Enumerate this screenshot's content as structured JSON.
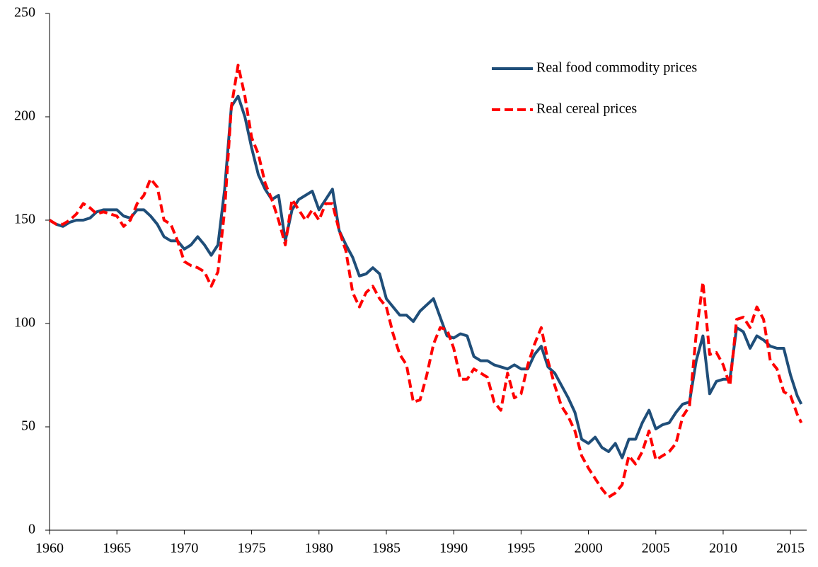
{
  "chart_data": {
    "type": "line",
    "x": [
      1960,
      1960.5,
      1961,
      1961.5,
      1962,
      1962.5,
      1963,
      1963.5,
      1964,
      1964.5,
      1965,
      1965.5,
      1966,
      1966.5,
      1967,
      1967.5,
      1968,
      1968.5,
      1969,
      1969.5,
      1970,
      1970.5,
      1971,
      1971.5,
      1972,
      1972.5,
      1973,
      1973.5,
      1974,
      1974.5,
      1975,
      1975.5,
      1976,
      1976.5,
      1977,
      1977.5,
      1978,
      1978.5,
      1979,
      1979.5,
      1980,
      1980.5,
      1981,
      1981.5,
      1982,
      1982.5,
      1983,
      1983.5,
      1984,
      1984.5,
      1985,
      1985.5,
      1986,
      1986.5,
      1987,
      1987.5,
      1988,
      1988.5,
      1989,
      1989.5,
      1990,
      1990.5,
      1991,
      1991.5,
      1992,
      1992.5,
      1993,
      1993.5,
      1994,
      1994.5,
      1995,
      1995.5,
      1996,
      1996.5,
      1997,
      1997.5,
      1998,
      1998.5,
      1999,
      1999.5,
      2000,
      2000.5,
      2001,
      2001.5,
      2002,
      2002.5,
      2003,
      2003.5,
      2004,
      2004.5,
      2005,
      2005.5,
      2006,
      2006.5,
      2007,
      2007.5,
      2008,
      2008.5,
      2009,
      2009.5,
      2010,
      2010.5,
      2011,
      2011.5,
      2012,
      2012.5,
      2013,
      2013.5,
      2014,
      2014.5,
      2015,
      2015.5,
      2015.8
    ],
    "series": [
      {
        "name": "Real food commodity prices",
        "color": "#1f4e79",
        "dash": "solid",
        "values": [
          150,
          148,
          147,
          149,
          150,
          150,
          151,
          154,
          155,
          155,
          155,
          152,
          151,
          155,
          155,
          152,
          148,
          142,
          140,
          140,
          136,
          138,
          142,
          138,
          133,
          138,
          165,
          205,
          210,
          200,
          185,
          172,
          165,
          160,
          162,
          140,
          155,
          160,
          162,
          164,
          155,
          160,
          165,
          145,
          138,
          132,
          123,
          124,
          127,
          124,
          112,
          108,
          104,
          104,
          101,
          106,
          109,
          112,
          103,
          94,
          93,
          95,
          94,
          84,
          82,
          82,
          80,
          79,
          78,
          80,
          78,
          78,
          85,
          89,
          79,
          76,
          70,
          64,
          57,
          44,
          42,
          45,
          40,
          38,
          42,
          35,
          44,
          44,
          52,
          58,
          49,
          51,
          52,
          57,
          61,
          62,
          82,
          94,
          66,
          72,
          73,
          73,
          98,
          96,
          88,
          94,
          92,
          89,
          88,
          88,
          75,
          65,
          61
        ]
      },
      {
        "name": "Real cereal prices",
        "color": "#ff0000",
        "dash": "dashed",
        "values": [
          150,
          148,
          148,
          150,
          153,
          158,
          156,
          153,
          154,
          153,
          152,
          147,
          150,
          158,
          162,
          170,
          166,
          150,
          148,
          140,
          130,
          128,
          127,
          125,
          118,
          125,
          155,
          205,
          225,
          210,
          190,
          182,
          168,
          160,
          150,
          138,
          160,
          155,
          150,
          155,
          150,
          158,
          158,
          145,
          135,
          115,
          108,
          115,
          118,
          112,
          108,
          95,
          85,
          80,
          62,
          63,
          75,
          90,
          98,
          97,
          88,
          73,
          73,
          78,
          76,
          74,
          62,
          58,
          76,
          64,
          66,
          80,
          90,
          98,
          82,
          70,
          60,
          55,
          48,
          36,
          30,
          25,
          20,
          16,
          18,
          22,
          36,
          32,
          38,
          48,
          34,
          36,
          38,
          42,
          55,
          60,
          95,
          120,
          85,
          86,
          80,
          70,
          102,
          103,
          98,
          108,
          102,
          82,
          78,
          67,
          65,
          56,
          52
        ]
      }
    ],
    "xlim": [
      1960,
      2016.2
    ],
    "xticks": [
      1960,
      1965,
      1970,
      1975,
      1980,
      1985,
      1990,
      1995,
      2000,
      2005,
      2010,
      2015
    ],
    "ylim": [
      0,
      250
    ],
    "yticks": [
      0,
      50,
      100,
      150,
      200,
      250
    ],
    "grid": false,
    "legend": "upper right"
  }
}
